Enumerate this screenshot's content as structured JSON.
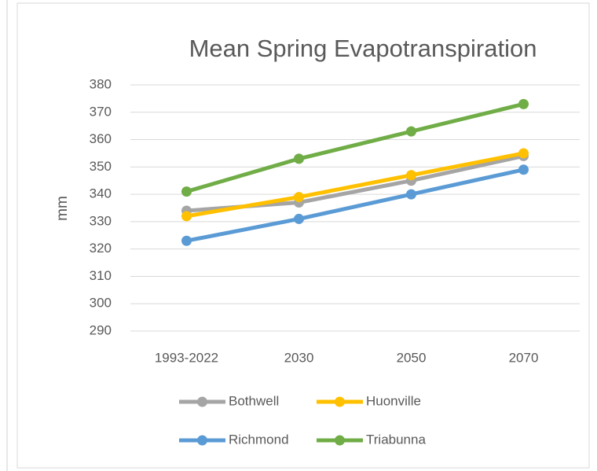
{
  "chart_data": {
    "type": "line",
    "title": "Mean Spring Evapotranspiration",
    "y_label": "mm",
    "categories": [
      "1993-2022",
      "2030",
      "2050",
      "2070"
    ],
    "series": [
      {
        "name": "Bothwell",
        "color": "#a5a5a5",
        "values": [
          334,
          337,
          345,
          354
        ]
      },
      {
        "name": "Huonville",
        "color": "#ffc000",
        "values": [
          332,
          339,
          347,
          355
        ]
      },
      {
        "name": "Richmond",
        "color": "#5b9bd5",
        "values": [
          323,
          331,
          340,
          349
        ]
      },
      {
        "name": "Triabunna",
        "color": "#70ad47",
        "values": [
          341,
          353,
          363,
          373
        ]
      }
    ],
    "ylim": [
      290,
      380
    ],
    "yticks": [
      290,
      300,
      310,
      320,
      330,
      340,
      350,
      360,
      370,
      380
    ],
    "grid": true,
    "legend": "bottom"
  }
}
